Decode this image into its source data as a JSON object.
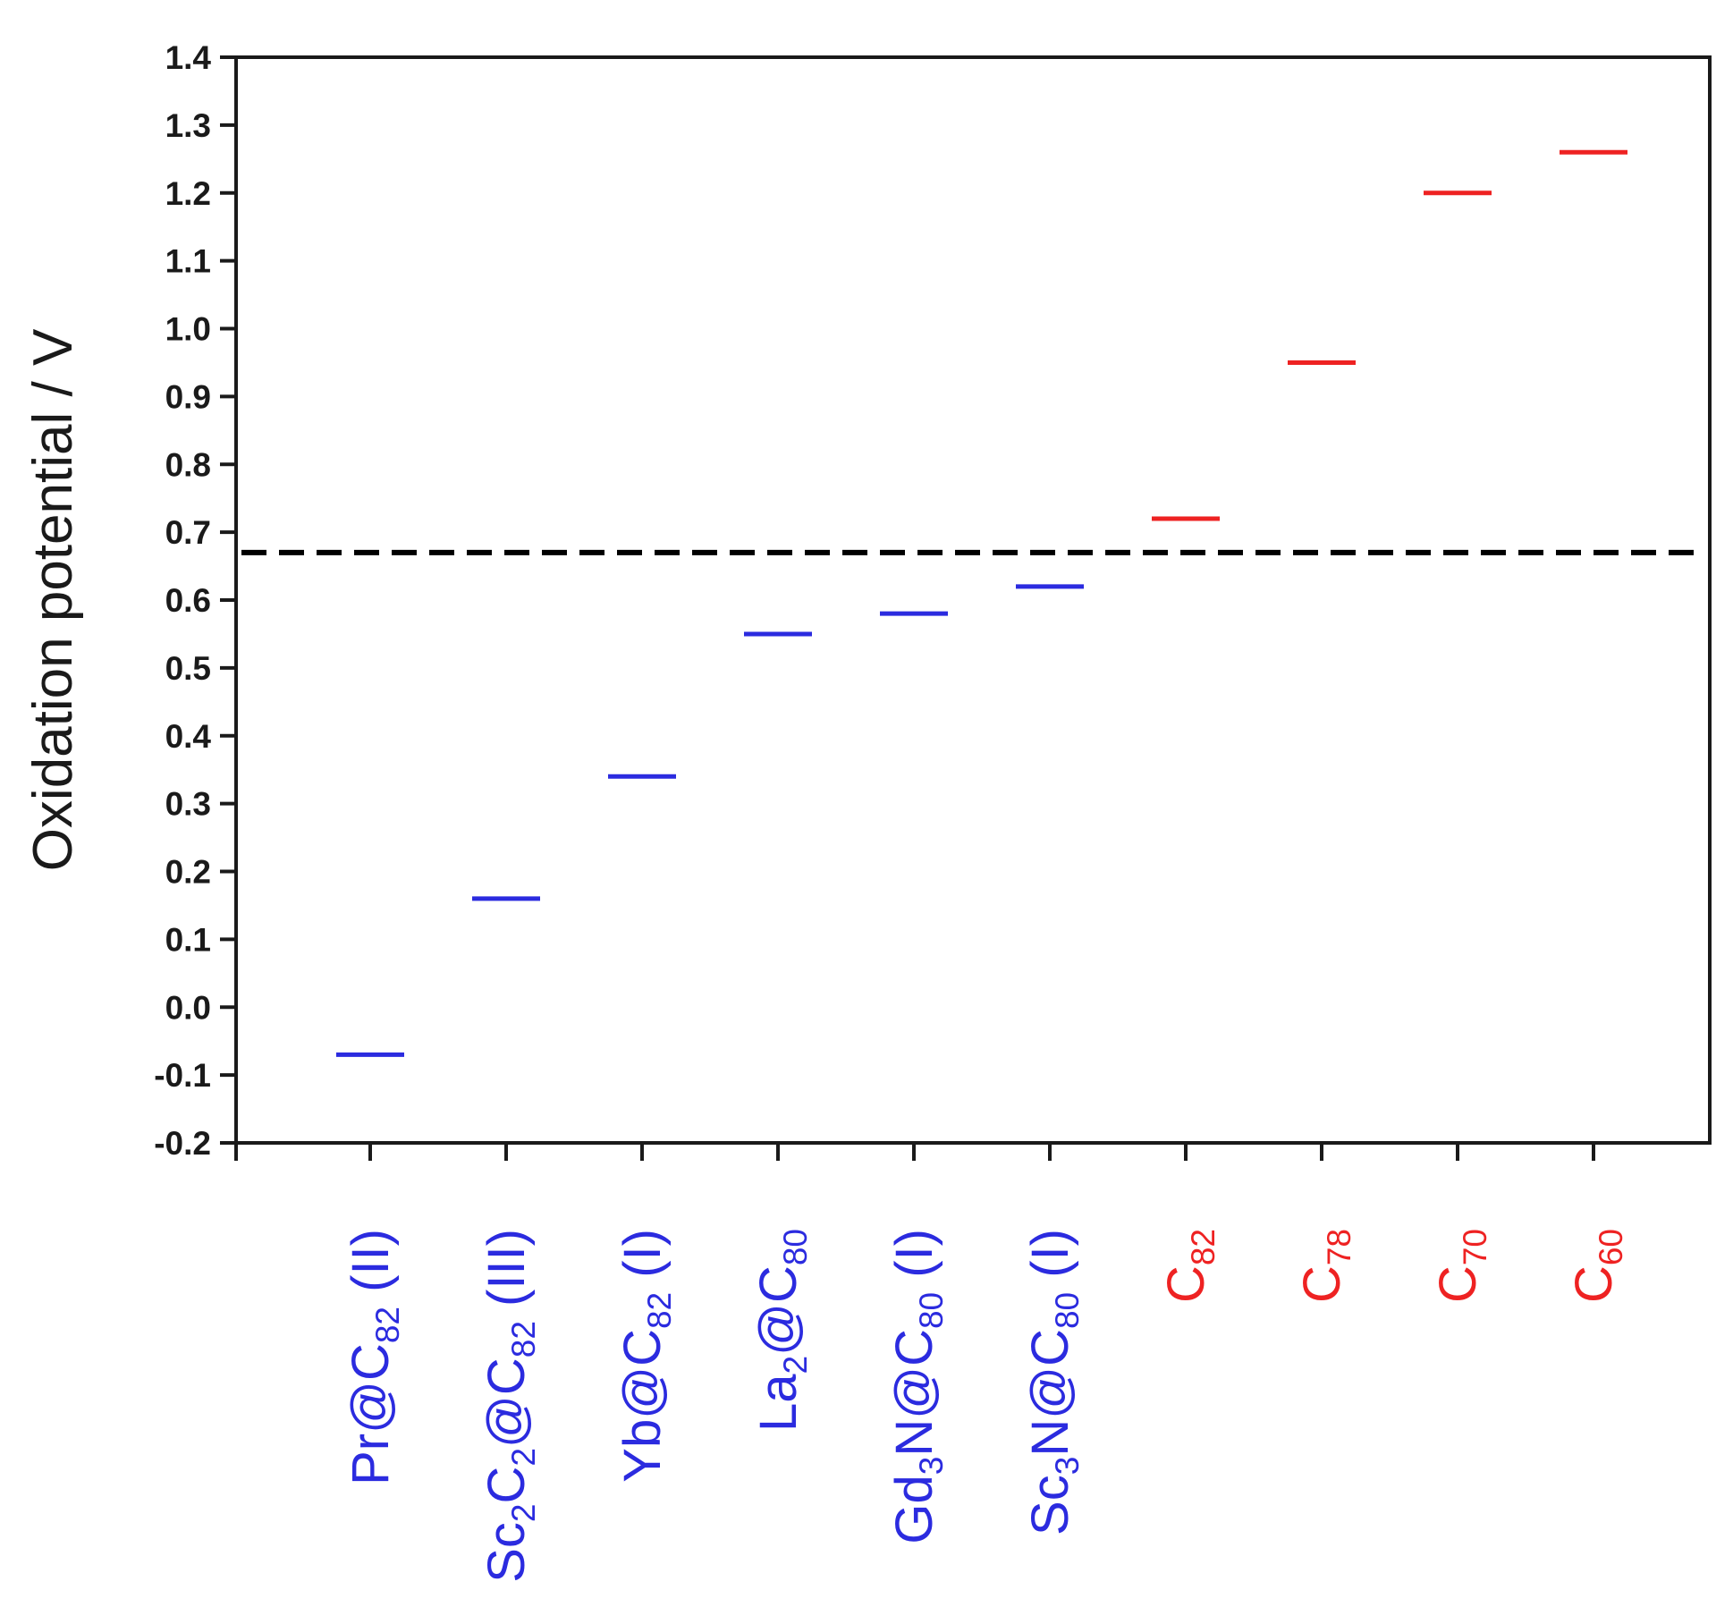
{
  "chart_data": {
    "type": "scatter",
    "ylabel": "Oxidation potential / V",
    "xlabel": "",
    "ylim": [
      -0.2,
      1.4
    ],
    "yticks": [
      "1.4",
      "1.3",
      "1.2",
      "1.1",
      "1.0",
      "0.9",
      "0.8",
      "0.7",
      "0.6",
      "0.5",
      "0.4",
      "0.3",
      "0.2",
      "0.1",
      "0.0",
      "-0.1",
      "-0.2"
    ],
    "reference_line": {
      "y": 0.67,
      "style": "dashed",
      "color": "#000000"
    },
    "grid": false,
    "colors": {
      "metallofullerene": "#2b2bdf",
      "empty_fullerene": "#ee2222"
    },
    "categories": [
      {
        "label": "Pr@C82 (II)",
        "parts": [
          [
            "Pr@C",
            ""
          ],
          [
            "82",
            "sub"
          ],
          [
            " (II)",
            ""
          ]
        ],
        "value": -0.07,
        "group": "metallofullerene"
      },
      {
        "label": "Sc2C2@C82 (III)",
        "parts": [
          [
            "Sc",
            ""
          ],
          [
            "2",
            "sub"
          ],
          [
            "C",
            ""
          ],
          [
            "2",
            "sub"
          ],
          [
            "@C",
            ""
          ],
          [
            "82",
            "sub"
          ],
          [
            " (III)",
            ""
          ]
        ],
        "value": 0.16,
        "group": "metallofullerene"
      },
      {
        "label": "Yb@C82 (I)",
        "parts": [
          [
            "Yb@C",
            ""
          ],
          [
            "82",
            "sub"
          ],
          [
            " (I)",
            ""
          ]
        ],
        "value": 0.34,
        "group": "metallofullerene"
      },
      {
        "label": "La2@C80",
        "parts": [
          [
            "La",
            ""
          ],
          [
            "2",
            "sub"
          ],
          [
            "@C",
            ""
          ],
          [
            "80",
            "sub"
          ]
        ],
        "value": 0.55,
        "group": "metallofullerene"
      },
      {
        "label": "Gd3N@C80 (I)",
        "parts": [
          [
            "Gd",
            ""
          ],
          [
            "3",
            "sub"
          ],
          [
            "N@C",
            ""
          ],
          [
            "80",
            "sub"
          ],
          [
            " (I)",
            ""
          ]
        ],
        "value": 0.58,
        "group": "metallofullerene"
      },
      {
        "label": "Sc3N@C80 (I)",
        "parts": [
          [
            "Sc",
            ""
          ],
          [
            "3",
            "sub"
          ],
          [
            "N@C",
            ""
          ],
          [
            "80",
            "sub"
          ],
          [
            " (I)",
            ""
          ]
        ],
        "value": 0.62,
        "group": "metallofullerene"
      },
      {
        "label": "C82",
        "parts": [
          [
            "C",
            ""
          ],
          [
            "82",
            "sub"
          ]
        ],
        "value": 0.72,
        "group": "empty_fullerene"
      },
      {
        "label": "C78",
        "parts": [
          [
            "C",
            ""
          ],
          [
            "78",
            "sub"
          ]
        ],
        "value": 0.95,
        "group": "empty_fullerene"
      },
      {
        "label": "C70",
        "parts": [
          [
            "C",
            ""
          ],
          [
            "70",
            "sub"
          ]
        ],
        "value": 1.2,
        "group": "empty_fullerene"
      },
      {
        "label": "C60",
        "parts": [
          [
            "C",
            ""
          ],
          [
            "60",
            "sub"
          ]
        ],
        "value": 1.26,
        "group": "empty_fullerene"
      }
    ]
  }
}
